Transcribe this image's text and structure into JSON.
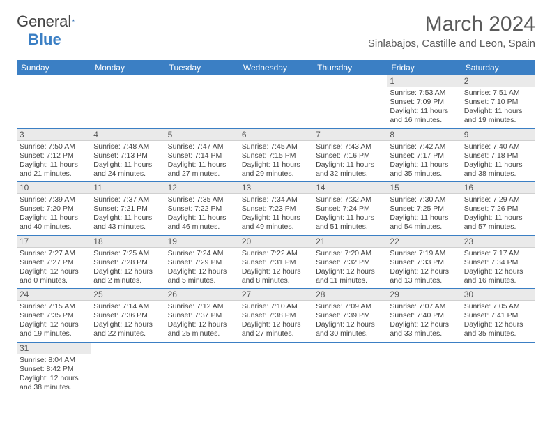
{
  "brand": {
    "part1": "General",
    "part2": "Blue"
  },
  "title": "March 2024",
  "location": "Sinlabajos, Castille and Leon, Spain",
  "colors": {
    "header_bg": "#3b7fc4",
    "header_text": "#ffffff",
    "daybar_bg": "#eaeaea",
    "text": "#444444",
    "rule": "#3b7fc4"
  },
  "weekdays": [
    "Sunday",
    "Monday",
    "Tuesday",
    "Wednesday",
    "Thursday",
    "Friday",
    "Saturday"
  ],
  "weeks": [
    [
      null,
      null,
      null,
      null,
      null,
      {
        "n": "1",
        "sr": "Sunrise: 7:53 AM",
        "ss": "Sunset: 7:09 PM",
        "d1": "Daylight: 11 hours",
        "d2": "and 16 minutes."
      },
      {
        "n": "2",
        "sr": "Sunrise: 7:51 AM",
        "ss": "Sunset: 7:10 PM",
        "d1": "Daylight: 11 hours",
        "d2": "and 19 minutes."
      }
    ],
    [
      {
        "n": "3",
        "sr": "Sunrise: 7:50 AM",
        "ss": "Sunset: 7:12 PM",
        "d1": "Daylight: 11 hours",
        "d2": "and 21 minutes."
      },
      {
        "n": "4",
        "sr": "Sunrise: 7:48 AM",
        "ss": "Sunset: 7:13 PM",
        "d1": "Daylight: 11 hours",
        "d2": "and 24 minutes."
      },
      {
        "n": "5",
        "sr": "Sunrise: 7:47 AM",
        "ss": "Sunset: 7:14 PM",
        "d1": "Daylight: 11 hours",
        "d2": "and 27 minutes."
      },
      {
        "n": "6",
        "sr": "Sunrise: 7:45 AM",
        "ss": "Sunset: 7:15 PM",
        "d1": "Daylight: 11 hours",
        "d2": "and 29 minutes."
      },
      {
        "n": "7",
        "sr": "Sunrise: 7:43 AM",
        "ss": "Sunset: 7:16 PM",
        "d1": "Daylight: 11 hours",
        "d2": "and 32 minutes."
      },
      {
        "n": "8",
        "sr": "Sunrise: 7:42 AM",
        "ss": "Sunset: 7:17 PM",
        "d1": "Daylight: 11 hours",
        "d2": "and 35 minutes."
      },
      {
        "n": "9",
        "sr": "Sunrise: 7:40 AM",
        "ss": "Sunset: 7:18 PM",
        "d1": "Daylight: 11 hours",
        "d2": "and 38 minutes."
      }
    ],
    [
      {
        "n": "10",
        "sr": "Sunrise: 7:39 AM",
        "ss": "Sunset: 7:20 PM",
        "d1": "Daylight: 11 hours",
        "d2": "and 40 minutes."
      },
      {
        "n": "11",
        "sr": "Sunrise: 7:37 AM",
        "ss": "Sunset: 7:21 PM",
        "d1": "Daylight: 11 hours",
        "d2": "and 43 minutes."
      },
      {
        "n": "12",
        "sr": "Sunrise: 7:35 AM",
        "ss": "Sunset: 7:22 PM",
        "d1": "Daylight: 11 hours",
        "d2": "and 46 minutes."
      },
      {
        "n": "13",
        "sr": "Sunrise: 7:34 AM",
        "ss": "Sunset: 7:23 PM",
        "d1": "Daylight: 11 hours",
        "d2": "and 49 minutes."
      },
      {
        "n": "14",
        "sr": "Sunrise: 7:32 AM",
        "ss": "Sunset: 7:24 PM",
        "d1": "Daylight: 11 hours",
        "d2": "and 51 minutes."
      },
      {
        "n": "15",
        "sr": "Sunrise: 7:30 AM",
        "ss": "Sunset: 7:25 PM",
        "d1": "Daylight: 11 hours",
        "d2": "and 54 minutes."
      },
      {
        "n": "16",
        "sr": "Sunrise: 7:29 AM",
        "ss": "Sunset: 7:26 PM",
        "d1": "Daylight: 11 hours",
        "d2": "and 57 minutes."
      }
    ],
    [
      {
        "n": "17",
        "sr": "Sunrise: 7:27 AM",
        "ss": "Sunset: 7:27 PM",
        "d1": "Daylight: 12 hours",
        "d2": "and 0 minutes."
      },
      {
        "n": "18",
        "sr": "Sunrise: 7:25 AM",
        "ss": "Sunset: 7:28 PM",
        "d1": "Daylight: 12 hours",
        "d2": "and 2 minutes."
      },
      {
        "n": "19",
        "sr": "Sunrise: 7:24 AM",
        "ss": "Sunset: 7:29 PM",
        "d1": "Daylight: 12 hours",
        "d2": "and 5 minutes."
      },
      {
        "n": "20",
        "sr": "Sunrise: 7:22 AM",
        "ss": "Sunset: 7:31 PM",
        "d1": "Daylight: 12 hours",
        "d2": "and 8 minutes."
      },
      {
        "n": "21",
        "sr": "Sunrise: 7:20 AM",
        "ss": "Sunset: 7:32 PM",
        "d1": "Daylight: 12 hours",
        "d2": "and 11 minutes."
      },
      {
        "n": "22",
        "sr": "Sunrise: 7:19 AM",
        "ss": "Sunset: 7:33 PM",
        "d1": "Daylight: 12 hours",
        "d2": "and 13 minutes."
      },
      {
        "n": "23",
        "sr": "Sunrise: 7:17 AM",
        "ss": "Sunset: 7:34 PM",
        "d1": "Daylight: 12 hours",
        "d2": "and 16 minutes."
      }
    ],
    [
      {
        "n": "24",
        "sr": "Sunrise: 7:15 AM",
        "ss": "Sunset: 7:35 PM",
        "d1": "Daylight: 12 hours",
        "d2": "and 19 minutes."
      },
      {
        "n": "25",
        "sr": "Sunrise: 7:14 AM",
        "ss": "Sunset: 7:36 PM",
        "d1": "Daylight: 12 hours",
        "d2": "and 22 minutes."
      },
      {
        "n": "26",
        "sr": "Sunrise: 7:12 AM",
        "ss": "Sunset: 7:37 PM",
        "d1": "Daylight: 12 hours",
        "d2": "and 25 minutes."
      },
      {
        "n": "27",
        "sr": "Sunrise: 7:10 AM",
        "ss": "Sunset: 7:38 PM",
        "d1": "Daylight: 12 hours",
        "d2": "and 27 minutes."
      },
      {
        "n": "28",
        "sr": "Sunrise: 7:09 AM",
        "ss": "Sunset: 7:39 PM",
        "d1": "Daylight: 12 hours",
        "d2": "and 30 minutes."
      },
      {
        "n": "29",
        "sr": "Sunrise: 7:07 AM",
        "ss": "Sunset: 7:40 PM",
        "d1": "Daylight: 12 hours",
        "d2": "and 33 minutes."
      },
      {
        "n": "30",
        "sr": "Sunrise: 7:05 AM",
        "ss": "Sunset: 7:41 PM",
        "d1": "Daylight: 12 hours",
        "d2": "and 35 minutes."
      }
    ],
    [
      {
        "n": "31",
        "sr": "Sunrise: 8:04 AM",
        "ss": "Sunset: 8:42 PM",
        "d1": "Daylight: 12 hours",
        "d2": "and 38 minutes."
      },
      null,
      null,
      null,
      null,
      null,
      null
    ]
  ]
}
